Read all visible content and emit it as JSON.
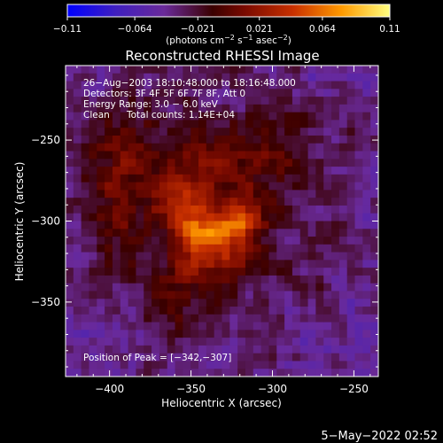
{
  "chart_data": {
    "type": "heatmap",
    "title": "Reconstructed RHESSI Image",
    "xlabel": "Heliocentric X (arcsec)",
    "ylabel": "Heliocentric Y (arcsec)",
    "xlim": [
      -427,
      -235
    ],
    "ylim": [
      -396,
      -204
    ],
    "x_ticks": [
      {
        "value": -400,
        "label": "−400"
      },
      {
        "value": -350,
        "label": "−350"
      },
      {
        "value": -300,
        "label": "−300"
      },
      {
        "value": -250,
        "label": "−250"
      }
    ],
    "y_ticks": [
      {
        "value": -250,
        "label": "−250"
      },
      {
        "value": -300,
        "label": "−300"
      },
      {
        "value": -350,
        "label": "−350"
      }
    ],
    "colorbar": {
      "range": [
        -0.11,
        0.11
      ],
      "ticks": [
        {
          "value": -0.11,
          "label": "−0.11"
        },
        {
          "value": -0.064,
          "label": "−0.064"
        },
        {
          "value": -0.021,
          "label": "−0.021"
        },
        {
          "value": 0.021,
          "label": "0.021"
        },
        {
          "value": 0.064,
          "label": "0.064"
        },
        {
          "value": 0.11,
          "label": "0.11"
        }
      ],
      "unit_base": "(photons cm",
      "unit_sup1": "−2",
      "unit_mid1": " s",
      "unit_sup2": "−1",
      "unit_mid2": " asec",
      "unit_sup3": "−2",
      "unit_end": ")"
    },
    "annotations": {
      "time": "26−Aug−2003 18:10:48.000 to 18:16:48.000",
      "detectors": "Detectors: 3F 4F 5F 6F 7F 8F, Att 0",
      "energy": "Energy Range: 3.0 − 6.0 keV",
      "clean": "Clean",
      "counts": "Total counts: 1.14E+04",
      "peak": "Position of Peak = [−342,−307]"
    },
    "peak": [
      -342,
      -307
    ],
    "sources": [
      {
        "x": -342,
        "y": -307,
        "amp": 0.085,
        "sx": 14,
        "sy": 11
      },
      {
        "x": -318,
        "y": -300,
        "amp": 0.05,
        "sx": 12,
        "sy": 10
      },
      {
        "x": -360,
        "y": -288,
        "amp": 0.04,
        "sx": 10,
        "sy": 9
      },
      {
        "x": -340,
        "y": -270,
        "amp": 0.035,
        "sx": 22,
        "sy": 18
      },
      {
        "x": -300,
        "y": -260,
        "amp": 0.03,
        "sx": 16,
        "sy": 14
      },
      {
        "x": -330,
        "y": -325,
        "amp": 0.035,
        "sx": 14,
        "sy": 10
      },
      {
        "x": -390,
        "y": -258,
        "amp": 0.03,
        "sx": 18,
        "sy": 20
      },
      {
        "x": -395,
        "y": -300,
        "amp": 0.025,
        "sx": 12,
        "sy": 20
      },
      {
        "x": -352,
        "y": -340,
        "amp": 0.025,
        "sx": 16,
        "sy": 18
      }
    ]
  },
  "footer": {
    "timestamp": "5−May−2022 02:52"
  }
}
